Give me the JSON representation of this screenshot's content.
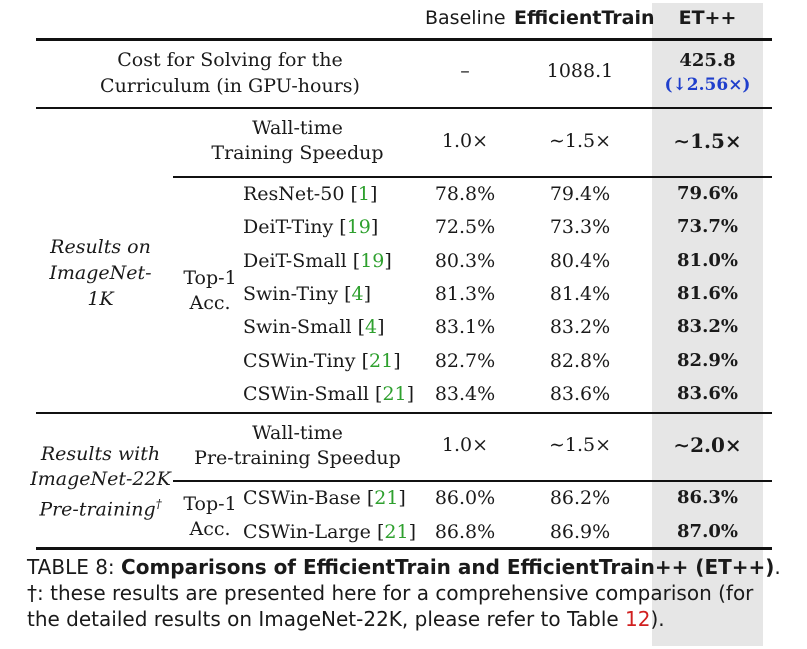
{
  "header": {
    "col_baseline": "Baseline",
    "col_efficienttrain": "EfficientTrain",
    "col_etpp": "ET++"
  },
  "cost": {
    "label_line1": "Cost for Solving for the",
    "label_line2": "Curriculum (in GPU-hours)",
    "baseline": "–",
    "efficienttrain": "1088.1",
    "etpp": "425.8",
    "etpp_reduction": "(↓2.56×)"
  },
  "section_1k": {
    "label_line1": "Results on",
    "label_line2": "ImageNet-1K",
    "speedup_line1": "Wall-time",
    "speedup_line2": "Training Speedup",
    "speedup_baseline": "1.0×",
    "speedup_efficienttrain": "∼1.5×",
    "speedup_etpp": "∼1.5×",
    "acc_line1": "Top-1",
    "acc_line2": "Acc.",
    "rows": [
      {
        "model": "ResNet-50 ",
        "lb": "[",
        "ref": "1",
        "rb": "]",
        "baseline": "78.8%",
        "efficienttrain": "79.4%",
        "etpp": "79.6%"
      },
      {
        "model": "DeiT-Tiny ",
        "lb": "[",
        "ref": "19",
        "rb": "]",
        "baseline": "72.5%",
        "efficienttrain": "73.3%",
        "etpp": "73.7%"
      },
      {
        "model": "DeiT-Small ",
        "lb": "[",
        "ref": "19",
        "rb": "]",
        "baseline": "80.3%",
        "efficienttrain": "80.4%",
        "etpp": "81.0%"
      },
      {
        "model": "Swin-Tiny ",
        "lb": "[",
        "ref": "4",
        "rb": "]",
        "baseline": "81.3%",
        "efficienttrain": "81.4%",
        "etpp": "81.6%"
      },
      {
        "model": "Swin-Small ",
        "lb": "[",
        "ref": "4",
        "rb": "]",
        "baseline": "83.1%",
        "efficienttrain": "83.2%",
        "etpp": "83.2%"
      },
      {
        "model": "CSWin-Tiny ",
        "lb": "[",
        "ref": "21",
        "rb": "]",
        "baseline": "82.7%",
        "efficienttrain": "82.8%",
        "etpp": "82.9%"
      },
      {
        "model": "CSWin-Small ",
        "lb": "[",
        "ref": "21",
        "rb": "]",
        "baseline": "83.4%",
        "efficienttrain": "83.6%",
        "etpp": "83.6%"
      }
    ]
  },
  "section_22k": {
    "label_line1": "Results with",
    "label_line2": "ImageNet-22K",
    "label_line3": "Pre-training",
    "label_dagger": "†",
    "speedup_line1": "Wall-time",
    "speedup_line2": "Pre-training Speedup",
    "speedup_baseline": "1.0×",
    "speedup_efficienttrain": "∼1.5×",
    "speedup_etpp": "∼2.0×",
    "acc_line1": "Top-1",
    "acc_line2": "Acc.",
    "rows": [
      {
        "model": "CSWin-Base ",
        "lb": "[",
        "ref": "21",
        "rb": "]",
        "baseline": "86.0%",
        "efficienttrain": "86.2%",
        "etpp": "86.3%"
      },
      {
        "model": "CSWin-Large ",
        "lb": "[",
        "ref": "21",
        "rb": "]",
        "baseline": "86.8%",
        "efficienttrain": "86.9%",
        "etpp": "87.0%"
      }
    ]
  },
  "caption": {
    "label": "TABLE 8: ",
    "title": "Comparisons of EfficientTrain and EfficientTrain++ (ET++)",
    "title_end": ".",
    "line2": "†: these results are presented here for a comprehensive comparison (for",
    "line3_pre": "the detailed results on ImageNet-22K, please refer to Table ",
    "line3_ref": "12",
    "line3_post": ")."
  },
  "colors": {
    "highlight_column": "#e6e6e6",
    "ref_green": "#2ea02e",
    "ref_red": "#d11f1f",
    "reduction_blue": "#1f3fcc"
  }
}
